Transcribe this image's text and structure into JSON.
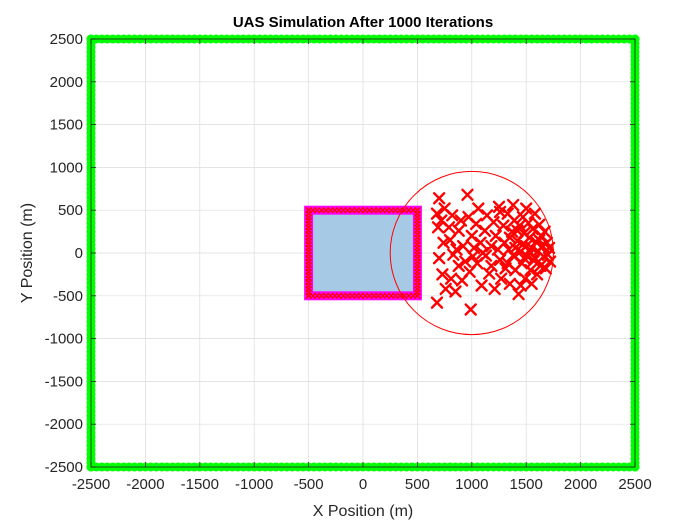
{
  "chart_data": {
    "type": "scatter",
    "title": "UAS Simulation After 1000 Iterations",
    "xlabel": "X Position (m)",
    "ylabel": "Y Position (m)",
    "xlim": [
      -2500,
      2500
    ],
    "ylim": [
      -2500,
      2500
    ],
    "xticks": [
      -2500,
      -2000,
      -1500,
      -1000,
      -500,
      0,
      500,
      1000,
      1500,
      2000,
      2500
    ],
    "yticks": [
      -2500,
      -2000,
      -1500,
      -1000,
      -500,
      0,
      500,
      1000,
      1500,
      2000,
      2500
    ],
    "grid": true,
    "colors": {
      "boundary": "#00ff00",
      "protected_fill": "#a6cae6",
      "protected_edge": "#ff00ff",
      "perimeter_marker": "#ff0000",
      "uas_marker": "#ff0000",
      "uas_circle": "#ff0000",
      "grid": "#dcdcdc",
      "axes": "#262626"
    },
    "boundary_square": {
      "xmin": -2500,
      "xmax": 2500,
      "ymin": -2500,
      "ymax": 2500,
      "marker": "filled-circle"
    },
    "protected_zone": {
      "xmin": -500,
      "xmax": 500,
      "ymin": -500,
      "ymax": 500
    },
    "uas_circle": {
      "cx": 1000,
      "cy": 0,
      "r": 750
    },
    "uas_positions": [
      [
        680,
        460
      ],
      [
        700,
        640
      ],
      [
        720,
        380
      ],
      [
        750,
        520
      ],
      [
        690,
        300
      ],
      [
        740,
        120
      ],
      [
        700,
        -60
      ],
      [
        730,
        -250
      ],
      [
        680,
        -580
      ],
      [
        760,
        -420
      ],
      [
        790,
        300
      ],
      [
        820,
        440
      ],
      [
        800,
        150
      ],
      [
        830,
        -20
      ],
      [
        810,
        -300
      ],
      [
        850,
        -450
      ],
      [
        880,
        260
      ],
      [
        900,
        380
      ],
      [
        920,
        80
      ],
      [
        880,
        -150
      ],
      [
        910,
        -320
      ],
      [
        960,
        680
      ],
      [
        990,
        -660
      ],
      [
        970,
        420
      ],
      [
        1000,
        200
      ],
      [
        1010,
        -40
      ],
      [
        980,
        -220
      ],
      [
        1040,
        340
      ],
      [
        1060,
        520
      ],
      [
        1080,
        120
      ],
      [
        1050,
        -120
      ],
      [
        1090,
        -380
      ],
      [
        1120,
        260
      ],
      [
        1140,
        440
      ],
      [
        1130,
        -30
      ],
      [
        1160,
        -240
      ],
      [
        1180,
        80
      ],
      [
        1200,
        360
      ],
      [
        1210,
        -420
      ],
      [
        1220,
        200
      ],
      [
        1250,
        540
      ],
      [
        1260,
        -80
      ],
      [
        1270,
        -300
      ],
      [
        1290,
        320
      ],
      [
        1300,
        120
      ],
      [
        1310,
        -180
      ],
      [
        1330,
        460
      ],
      [
        1340,
        40
      ],
      [
        1350,
        -360
      ],
      [
        1370,
        250
      ],
      [
        1380,
        -30
      ],
      [
        1390,
        380
      ],
      [
        1400,
        -200
      ],
      [
        1420,
        140
      ],
      [
        1430,
        -480
      ],
      [
        1440,
        320
      ],
      [
        1450,
        20
      ],
      [
        1460,
        -120
      ],
      [
        1470,
        420
      ],
      [
        1480,
        230
      ],
      [
        1490,
        -300
      ],
      [
        1500,
        80
      ],
      [
        1510,
        -40
      ],
      [
        1520,
        350
      ],
      [
        1530,
        180
      ],
      [
        1540,
        -200
      ],
      [
        1550,
        60
      ],
      [
        1560,
        280
      ],
      [
        1570,
        -90
      ],
      [
        1580,
        460
      ],
      [
        1590,
        130
      ],
      [
        1600,
        -250
      ],
      [
        1610,
        20
      ],
      [
        1620,
        330
      ],
      [
        1630,
        -150
      ],
      [
        1640,
        200
      ],
      [
        1650,
        80
      ],
      [
        1660,
        -40
      ],
      [
        1670,
        250
      ],
      [
        1680,
        -180
      ],
      [
        1690,
        120
      ],
      [
        1700,
        -20
      ],
      [
        1710,
        60
      ],
      [
        1720,
        -100
      ],
      [
        1500,
        520
      ],
      [
        1380,
        560
      ],
      [
        1260,
        480
      ],
      [
        1450,
        -380
      ],
      [
        1550,
        -360
      ],
      [
        1350,
        180
      ],
      [
        1420,
        260
      ],
      [
        1480,
        -60
      ],
      [
        1580,
        -60
      ],
      [
        1620,
        150
      ],
      [
        1530,
        20
      ],
      [
        1470,
        100
      ],
      [
        1400,
        60
      ],
      [
        1330,
        -120
      ],
      [
        1240,
        40
      ],
      [
        1180,
        -150
      ],
      [
        1100,
        0
      ],
      [
        1020,
        60
      ],
      [
        940,
        -100
      ],
      [
        860,
        40
      ]
    ]
  }
}
